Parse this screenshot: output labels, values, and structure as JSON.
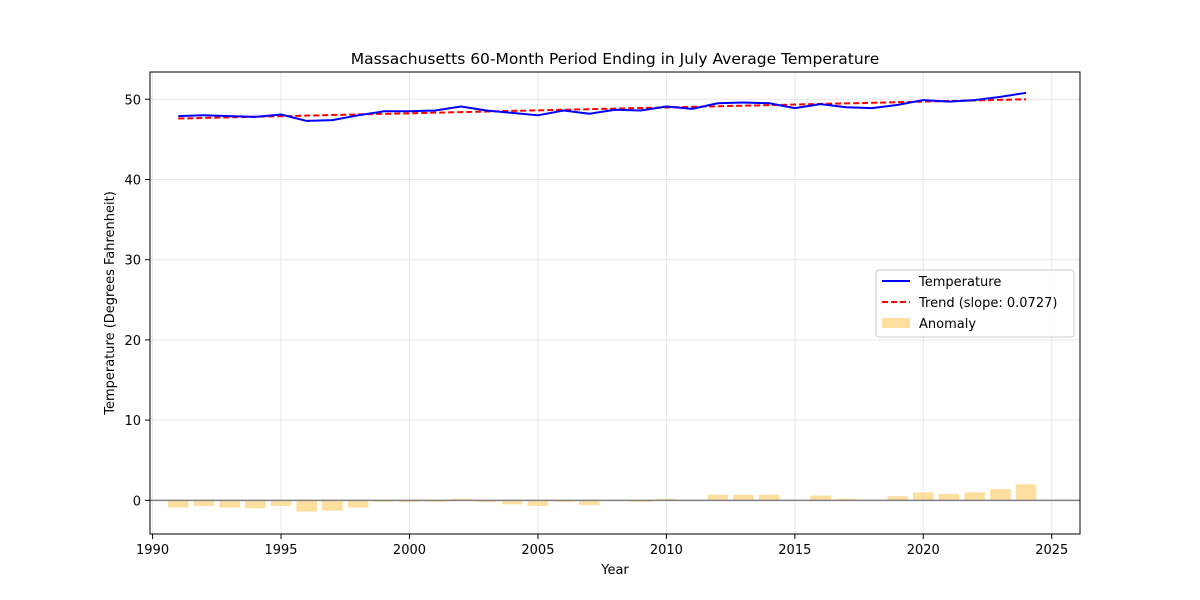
{
  "chart_data": {
    "type": "line",
    "title": "Massachusetts 60-Month Period Ending in July Average Temperature",
    "xlabel": "Year",
    "ylabel": "Temperature (Degrees Fahrenheit)",
    "xlim": [
      1989.9,
      2026.1
    ],
    "ylim": [
      -4.2,
      53.4
    ],
    "xticks": [
      1990,
      1995,
      2000,
      2005,
      2010,
      2015,
      2020,
      2025
    ],
    "yticks": [
      0,
      10,
      20,
      30,
      40,
      50
    ],
    "grid": true,
    "legend_position": "center-right",
    "x": [
      1991,
      1992,
      1993,
      1994,
      1995,
      1996,
      1997,
      1998,
      1999,
      2000,
      2001,
      2002,
      2003,
      2004,
      2005,
      2006,
      2007,
      2008,
      2009,
      2010,
      2011,
      2012,
      2013,
      2014,
      2015,
      2016,
      2017,
      2018,
      2019,
      2020,
      2021,
      2022,
      2023,
      2024
    ],
    "series": [
      {
        "name": "Temperature",
        "style": "solid-line",
        "color": "#0000ff",
        "values": [
          47.9,
          48.0,
          47.9,
          47.8,
          48.1,
          47.3,
          47.4,
          48.0,
          48.5,
          48.5,
          48.6,
          49.1,
          48.6,
          48.3,
          48.0,
          48.6,
          48.2,
          48.7,
          48.6,
          49.1,
          48.8,
          49.5,
          49.6,
          49.5,
          48.9,
          49.4,
          49.0,
          48.9,
          49.3,
          49.9,
          49.7,
          49.9,
          50.3,
          50.8
        ]
      },
      {
        "name": "Trend (slope: 0.0727)",
        "style": "dashed-line",
        "color": "#ff0000",
        "values": [
          47.6,
          47.67,
          47.75,
          47.82,
          47.89,
          47.96,
          48.04,
          48.11,
          48.18,
          48.25,
          48.33,
          48.4,
          48.47,
          48.55,
          48.62,
          48.69,
          48.76,
          48.84,
          48.91,
          48.98,
          49.05,
          49.13,
          49.2,
          49.27,
          49.34,
          49.42,
          49.49,
          49.56,
          49.64,
          49.71,
          49.78,
          49.85,
          49.93,
          50.0
        ]
      },
      {
        "name": "Anomaly",
        "style": "bar",
        "color": "#ffdfa0",
        "values": [
          -0.9,
          -0.7,
          -0.9,
          -1.0,
          -0.7,
          -1.4,
          -1.3,
          -0.9,
          -0.2,
          -0.2,
          -0.2,
          0.2,
          -0.2,
          -0.5,
          -0.7,
          -0.2,
          -0.6,
          -0.1,
          -0.2,
          0.2,
          -0.1,
          0.7,
          0.7,
          0.7,
          0.1,
          0.6,
          0.2,
          0.1,
          0.5,
          1.0,
          0.8,
          1.0,
          1.4,
          2.0
        ]
      }
    ],
    "zero_line_color": "#808080"
  }
}
